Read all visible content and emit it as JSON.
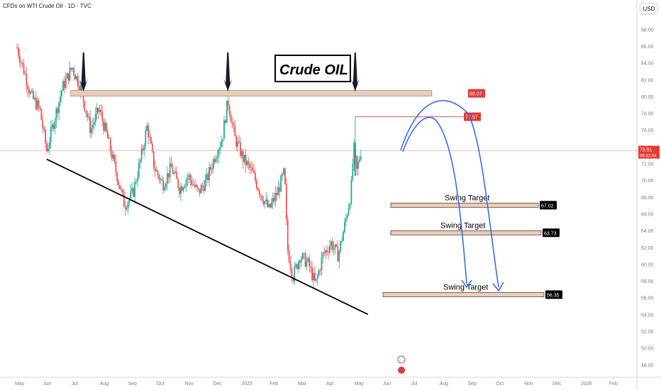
{
  "header": {
    "symbol_title": "CFDs on WTI Crude Oil · 1D · TVC"
  },
  "currency_button": "USD",
  "chart_data": {
    "type": "candlestick",
    "title": "Crude OIL",
    "x_axis": {
      "ticks": [
        "May",
        "Jun",
        "Jul",
        "Aug",
        "Sep",
        "Oct",
        "Nov",
        "Dec",
        "2025",
        "Feb",
        "Mar",
        "Apr",
        "May",
        "Jun",
        "Jul",
        "Aug",
        "Sep",
        "Oct",
        "Nov",
        "Dec",
        "2026",
        "Feb"
      ]
    },
    "y_axis": {
      "range": [
        46.5,
        91.5
      ],
      "ticks": [
        48,
        50,
        52,
        54,
        56,
        58,
        60,
        62,
        64,
        66,
        68,
        70,
        72,
        74,
        76,
        78,
        80,
        82,
        84,
        86,
        88,
        90
      ],
      "tick_labels": [
        "48.00",
        "50.00",
        "52.00",
        "54.00",
        "56.00",
        "58.00",
        "60.00",
        "62.00",
        "64.00",
        "66.00",
        "68.00",
        "70.00",
        "72.00",
        "74.00",
        "76.00",
        "78.00",
        "80.00",
        "82.00",
        "84.00",
        "86.00",
        "88.00",
        "90.00"
      ]
    },
    "price_path": [
      {
        "month": 0.0,
        "price": 85.8
      },
      {
        "month": 0.25,
        "price": 83.0
      },
      {
        "month": 0.5,
        "price": 80.0
      },
      {
        "month": 0.8,
        "price": 78.5
      },
      {
        "month": 1.05,
        "price": 73.5
      },
      {
        "month": 1.3,
        "price": 77.0
      },
      {
        "month": 1.6,
        "price": 81.0
      },
      {
        "month": 1.95,
        "price": 83.5
      },
      {
        "month": 2.25,
        "price": 81.0
      },
      {
        "month": 2.6,
        "price": 76.0
      },
      {
        "month": 2.9,
        "price": 78.5
      },
      {
        "month": 3.2,
        "price": 75.0
      },
      {
        "month": 3.5,
        "price": 71.0
      },
      {
        "month": 3.8,
        "price": 67.0
      },
      {
        "month": 4.1,
        "price": 68.5
      },
      {
        "month": 4.4,
        "price": 73.0
      },
      {
        "month": 4.6,
        "price": 76.5
      },
      {
        "month": 4.85,
        "price": 71.5
      },
      {
        "month": 5.15,
        "price": 69.5
      },
      {
        "month": 5.45,
        "price": 71.5
      },
      {
        "month": 5.75,
        "price": 69.0
      },
      {
        "month": 6.05,
        "price": 70.5
      },
      {
        "month": 6.4,
        "price": 68.5
      },
      {
        "month": 6.7,
        "price": 70.0
      },
      {
        "month": 7.0,
        "price": 73.0
      },
      {
        "month": 7.25,
        "price": 75.0
      },
      {
        "month": 7.45,
        "price": 79.5
      },
      {
        "month": 7.7,
        "price": 75.0
      },
      {
        "month": 8.0,
        "price": 72.5
      },
      {
        "month": 8.3,
        "price": 71.0
      },
      {
        "month": 8.6,
        "price": 68.5
      },
      {
        "month": 8.9,
        "price": 66.5
      },
      {
        "month": 9.2,
        "price": 68.5
      },
      {
        "month": 9.45,
        "price": 71.0
      },
      {
        "month": 9.55,
        "price": 62.0
      },
      {
        "month": 9.75,
        "price": 58.5
      },
      {
        "month": 10.0,
        "price": 61.0
      },
      {
        "month": 10.3,
        "price": 60.0
      },
      {
        "month": 10.55,
        "price": 57.5
      },
      {
        "month": 10.8,
        "price": 61.0
      },
      {
        "month": 11.1,
        "price": 62.5
      },
      {
        "month": 11.35,
        "price": 61.0
      },
      {
        "month": 11.6,
        "price": 65.0
      },
      {
        "month": 11.8,
        "price": 68.5
      },
      {
        "month": 11.9,
        "price": 74.0
      },
      {
        "month": 12.0,
        "price": 71.0
      },
      {
        "month": 12.15,
        "price": 73.5
      }
    ],
    "current_price": {
      "value": 73.51,
      "label": "73.51",
      "countdown": "09:32:54"
    },
    "horizontal_levels": [
      {
        "value": 80.37,
        "label": "80.37",
        "kind": "resistance"
      },
      {
        "value": 77.57,
        "label": "77.57",
        "kind": "resistance"
      },
      {
        "value": 67.02,
        "label": "67.02",
        "kind": "target",
        "text": "Swing Target"
      },
      {
        "value": 63.73,
        "label": "63.73",
        "kind": "target",
        "text": "Swing Target"
      },
      {
        "value": 56.35,
        "label": "56.35",
        "kind": "target",
        "text": "Swing Target"
      }
    ],
    "trendline": [
      {
        "month": 1.05,
        "price": 72.5
      },
      {
        "month": 12.4,
        "price": 54.0
      }
    ],
    "arrows_down_at_month": [
      2.35,
      7.45,
      11.95
    ],
    "colors": {
      "up": "#26a69a",
      "down": "#ef5350",
      "resistance_label": "#e53935",
      "target_label": "#000000",
      "arrow_path": "#2962ff",
      "zone_fill": "#e8cdb8",
      "zone_border": "#a1887f"
    }
  }
}
